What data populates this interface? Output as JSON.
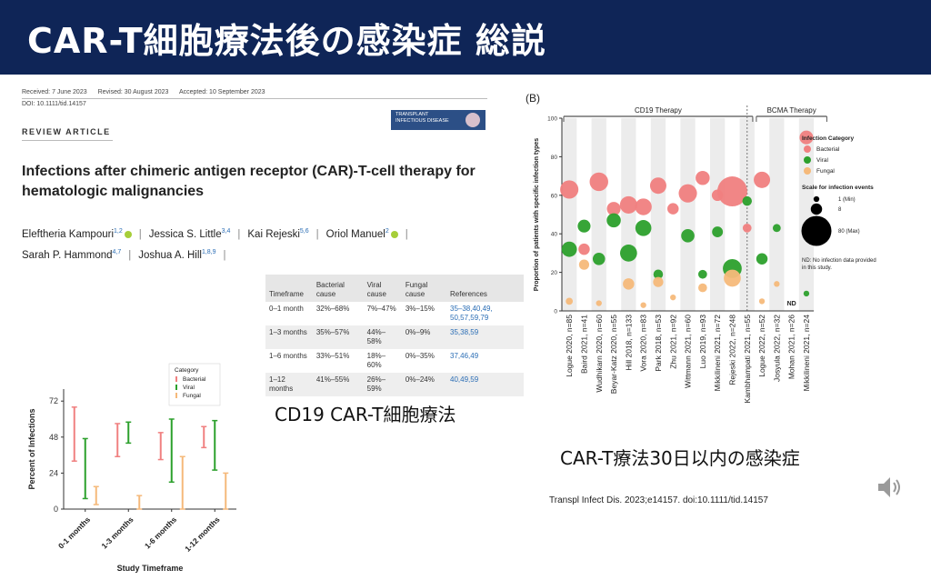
{
  "slide": {
    "title": "CAR-T細胞療法後の感染症 総説",
    "caption_left": "CD19 CAR-T細胞療法",
    "caption_right": "CAR-T療法30日以内の感染症",
    "citation": "Transpl Infect Dis. 2023;e14157. doi:10.1111/tid.14157",
    "speaker_icon": "speaker-icon"
  },
  "paper": {
    "received": "Received: 7 June 2023",
    "revised": "Revised: 30 August 2023",
    "accepted": "Accepted: 10 September 2023",
    "doi": "DOI: 10.1111/tid.14157",
    "article_type": "REVIEW ARTICLE",
    "journal_logo": "TRANSPLANT INFECTIOUS DISEASE",
    "title": "Infections after chimeric antigen receptor (CAR)-T-cell therapy for hematologic malignancies",
    "authors_line1": [
      {
        "name": "Eleftheria Kampouri",
        "sup": "1,2",
        "orcid": true
      },
      {
        "name": "Jessica S. Little",
        "sup": "3,4",
        "orcid": false
      },
      {
        "name": "Kai Rejeski",
        "sup": "5,6",
        "orcid": false
      },
      {
        "name": "Oriol Manuel",
        "sup": "2",
        "orcid": true
      }
    ],
    "authors_line2": [
      {
        "name": "Sarah P. Hammond",
        "sup": "4,7",
        "orcid": false
      },
      {
        "name": "Joshua A. Hill",
        "sup": "1,8,9",
        "orcid": false
      }
    ]
  },
  "table": {
    "headers": [
      "Timeframe",
      "Bacterial cause",
      "Viral cause",
      "Fungal cause",
      "References"
    ],
    "rows": [
      [
        "0–1 month",
        "32%–68%",
        "7%–47%",
        "3%–15%",
        "35–38,40,49, 50,57,59,79"
      ],
      [
        "1–3 months",
        "35%–57%",
        "44%–58%",
        "0%–9%",
        "35,38,59"
      ],
      [
        "1–6 months",
        "33%–51%",
        "18%–60%",
        "0%–35%",
        "37,46,49"
      ],
      [
        "1–12 months",
        "41%–55%",
        "26%–59%",
        "0%–24%",
        "40,49,59"
      ]
    ]
  },
  "chart_data": [
    {
      "type": "range",
      "title": "",
      "ylabel": "Percent of Infections",
      "xlabel": "Study Timeframe",
      "ylim": [
        0,
        80
      ],
      "yticks": [
        0,
        24,
        48,
        72
      ],
      "categories": [
        "0-1 months",
        "1-3 months",
        "1-6 months",
        "1-12 months"
      ],
      "legend_title": "Category",
      "legend_position": "top-right",
      "series": [
        {
          "name": "Bacterial",
          "color": "#f08080",
          "ranges": [
            [
              32,
              68
            ],
            [
              35,
              57
            ],
            [
              33,
              51
            ],
            [
              41,
              55
            ]
          ]
        },
        {
          "name": "Viral",
          "color": "#2ca02c",
          "ranges": [
            [
              7,
              47
            ],
            [
              44,
              58
            ],
            [
              18,
              60
            ],
            [
              26,
              59
            ]
          ]
        },
        {
          "name": "Fungal",
          "color": "#f5b97a",
          "ranges": [
            [
              3,
              15
            ],
            [
              0,
              9
            ],
            [
              0,
              35
            ],
            [
              0,
              24
            ]
          ]
        }
      ]
    },
    {
      "type": "scatter",
      "panel_label": "(B)",
      "ylabel": "Proportion of patients with specific infection types",
      "ylim": [
        0,
        100
      ],
      "yticks": [
        0,
        20,
        40,
        60,
        80,
        100
      ],
      "groups": [
        {
          "name": "CD19 Therapy",
          "from": 0,
          "to": 12
        },
        {
          "name": "BCMA Therapy",
          "from": 13,
          "to": 17
        }
      ],
      "categories": [
        "Logue 2020, n=85",
        "Baird 2021, n=41",
        "Wudhikarn 2020, n=60",
        "Beyar-Katz 2020, n=55",
        "Hill 2018, n=133",
        "Vora 2020, n=83",
        "Park 2018, n=53",
        "Zhu 2021, n=92",
        "Wittmann 2021, n=60",
        "Luo 2019, n=93",
        "Mikkilineni 2021, n=72",
        "Rejeski 2022, n=248",
        "Kambhampati 2021, n=55",
        "Logue 2022, n=52",
        "Josyula 2022, n=32",
        "Mohan 2021, n=26",
        "Mikkilineni 2021, n=24"
      ],
      "nd_label": "ND",
      "legend_title": "Infection Category",
      "legend_position": "right",
      "size_legend_title": "Scale for infection events",
      "size_legend": [
        "1 (Min)",
        "8",
        "80 (Max)"
      ],
      "note": "ND: No infection data provided in this study.",
      "series": [
        {
          "name": "Bacterial",
          "color": "#f08080",
          "points": [
            [
              0,
              63,
              26
            ],
            [
              1,
              32,
              8
            ],
            [
              2,
              67,
              27
            ],
            [
              3,
              53,
              13
            ],
            [
              4,
              55,
              23
            ],
            [
              5,
              54,
              21
            ],
            [
              6,
              65,
              20
            ],
            [
              7,
              53,
              8
            ],
            [
              8,
              61,
              26
            ],
            [
              9,
              69,
              14
            ],
            [
              10,
              60,
              8
            ],
            [
              11,
              62,
              80
            ],
            [
              12,
              43,
              4
            ],
            [
              13,
              68,
              20
            ],
            [
              16,
              90,
              13
            ]
          ]
        },
        {
          "name": "Viral",
          "color": "#2ca02c",
          "points": [
            [
              0,
              32,
              17
            ],
            [
              1,
              44,
              11
            ],
            [
              2,
              27,
              10
            ],
            [
              3,
              47,
              14
            ],
            [
              4,
              30,
              22
            ],
            [
              5,
              43,
              19
            ],
            [
              6,
              19,
              5
            ],
            [
              8,
              39,
              12
            ],
            [
              9,
              19,
              4
            ],
            [
              10,
              41,
              7
            ],
            [
              11,
              22,
              28
            ],
            [
              12,
              57,
              5
            ],
            [
              13,
              27,
              8
            ],
            [
              14,
              43,
              3
            ],
            [
              16,
              9,
              1
            ]
          ]
        },
        {
          "name": "Fungal",
          "color": "#f5b97a",
          "points": [
            [
              0,
              5,
              2
            ],
            [
              1,
              24,
              6
            ],
            [
              2,
              4,
              1
            ],
            [
              4,
              14,
              8
            ],
            [
              5,
              3,
              1
            ],
            [
              6,
              15,
              6
            ],
            [
              7,
              7,
              1
            ],
            [
              9,
              12,
              4
            ],
            [
              11,
              17,
              22
            ],
            [
              13,
              5,
              1
            ],
            [
              14,
              14,
              1
            ]
          ]
        }
      ]
    }
  ]
}
